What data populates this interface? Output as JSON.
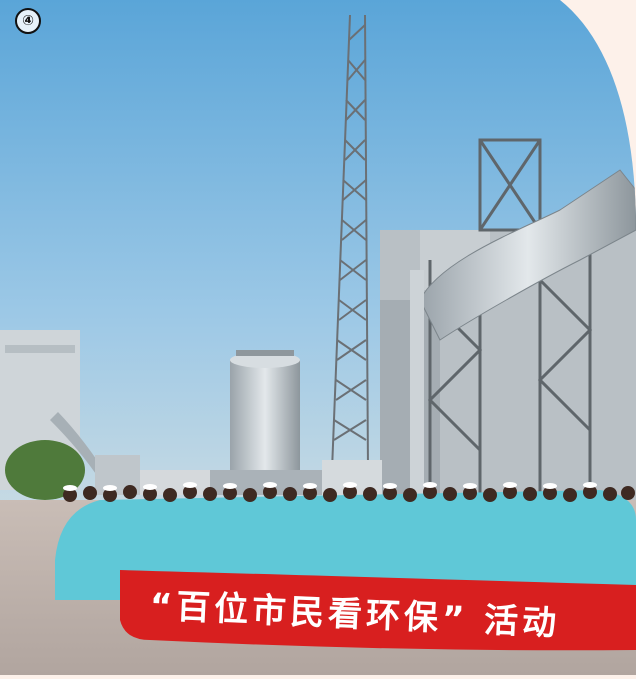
{
  "photo": {
    "badge": "④",
    "banner_text": "“百位市民看环保” 活动"
  },
  "colors": {
    "page_bg": "#fdf1ea",
    "sky": "#7fb6dc",
    "banner_red": "#d81f1f",
    "shirt_teal": "#5fc8d7"
  }
}
